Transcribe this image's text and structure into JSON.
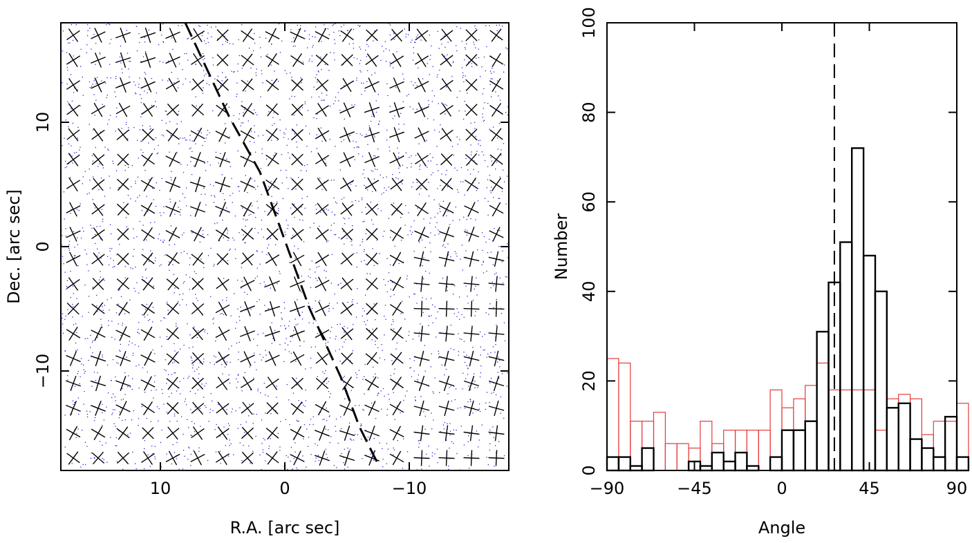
{
  "chart_data": [
    {
      "type": "scatter",
      "title": "",
      "xlabel": "R.A. [arc sec]",
      "ylabel": "Dec. [arc sec]",
      "xlim": [
        18,
        -18
      ],
      "ylim": [
        -18,
        18
      ],
      "x_ticks": [
        10,
        0,
        -10
      ],
      "x_tick_labels": [
        "10",
        "0",
        "−10"
      ],
      "y_ticks": [
        -10,
        0,
        10
      ],
      "y_tick_labels": [
        "−10",
        "0",
        "10"
      ],
      "grid": false,
      "marks": "grid of crossed bars (two perpendicular bars at each grid point, spacing ~1.9 arcsec, orientations varying across the field)",
      "marker_color": "#000000",
      "background_points_color": "#2222dd",
      "trend_line": {
        "style": "dashed",
        "x": [
          8.0,
          4.5,
          2.0,
          0.0,
          -2.0,
          -4.5,
          -6.0,
          -7.5
        ],
        "y": [
          18.0,
          10.5,
          6.0,
          0.5,
          -5.0,
          -10.5,
          -14.5,
          -17.5
        ]
      }
    },
    {
      "type": "bar",
      "title": "",
      "xlabel": "Angle",
      "ylabel": "Number",
      "xlim": [
        -90,
        90
      ],
      "ylim": [
        0,
        100
      ],
      "x_ticks": [
        -90,
        -45,
        0,
        45,
        90
      ],
      "x_tick_labels": [
        "−90",
        "−45",
        "0",
        "45",
        "90"
      ],
      "y_ticks": [
        0,
        20,
        40,
        60,
        80,
        100
      ],
      "y_tick_labels": [
        "0",
        "20",
        "40",
        "60",
        "80",
        "100"
      ],
      "grid": false,
      "bin_edges_start": -90,
      "bin_width": 6,
      "reference_line": {
        "style": "dashed",
        "x": 27
      },
      "series": [
        {
          "color": "#000000",
          "values": [
            3,
            3,
            1,
            5,
            0,
            0,
            0,
            2,
            1,
            4,
            2,
            4,
            1,
            0,
            3,
            9,
            9,
            11,
            31,
            42,
            51,
            72,
            48,
            40,
            14,
            15,
            7,
            5,
            3,
            12,
            3
          ]
        },
        {
          "color": "#e23b3b",
          "values": [
            25,
            24,
            11,
            11,
            13,
            6,
            6,
            5,
            11,
            6,
            9,
            9,
            9,
            9,
            18,
            14,
            16,
            19,
            24,
            18,
            18,
            18,
            18,
            9,
            16,
            17,
            16,
            8,
            11,
            11,
            15
          ]
        }
      ]
    }
  ]
}
